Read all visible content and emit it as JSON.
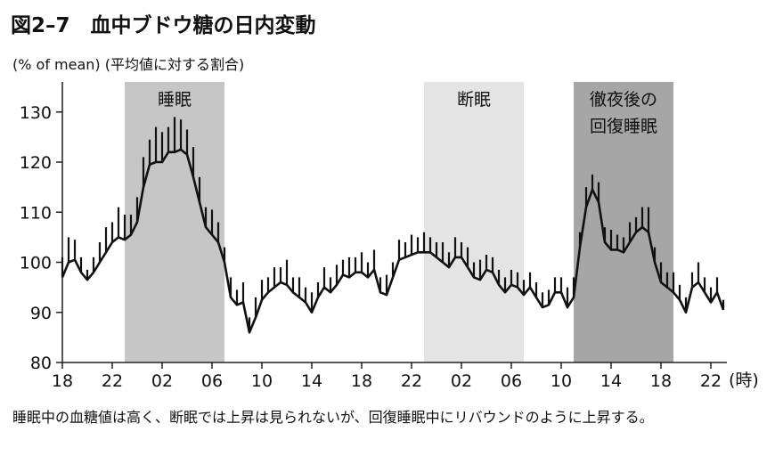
{
  "chart_data": {
    "type": "line",
    "title": "図2–7　血中ブドウ糖の日内変動",
    "y_label": "(% of mean) (平均値に対する割合)",
    "x_unit": "(時)",
    "caption": "睡眠中の血糖値は高く、断眠では上昇は見られないが、回復睡眠中にリバウンドのように上昇する。",
    "xlim": [
      0,
      53
    ],
    "ylim": [
      80,
      136
    ],
    "yticks": [
      80,
      90,
      100,
      110,
      120,
      130
    ],
    "xticks": [
      {
        "value": 0,
        "label": "18"
      },
      {
        "value": 4,
        "label": "22"
      },
      {
        "value": 8,
        "label": "02"
      },
      {
        "value": 12,
        "label": "06"
      },
      {
        "value": 16,
        "label": "10"
      },
      {
        "value": 20,
        "label": "14"
      },
      {
        "value": 24,
        "label": "18"
      },
      {
        "value": 28,
        "label": "22"
      },
      {
        "value": 32,
        "label": "02"
      },
      {
        "value": 36,
        "label": "06"
      },
      {
        "value": 40,
        "label": "10"
      },
      {
        "value": 44,
        "label": "14"
      },
      {
        "value": 48,
        "label": "18"
      },
      {
        "value": 52,
        "label": "22"
      }
    ],
    "regions": [
      {
        "label": [
          "睡眠"
        ],
        "start": 5,
        "end": 13,
        "color": "#c6c6c6"
      },
      {
        "label": [
          "断眠"
        ],
        "start": 29,
        "end": 37,
        "color": "#e4e4e4"
      },
      {
        "label": [
          "徹夜後の",
          "回復睡眠"
        ],
        "start": 41,
        "end": 49,
        "color": "#a6a6a6"
      }
    ],
    "x": [
      0,
      0.5,
      1,
      1.5,
      2,
      2.5,
      3,
      3.5,
      4,
      4.5,
      5,
      5.5,
      6,
      6.5,
      7,
      7.5,
      8,
      8.5,
      9,
      9.5,
      10,
      10.5,
      11,
      11.5,
      12,
      12.5,
      13,
      13.5,
      14,
      14.5,
      15,
      15.5,
      16,
      16.5,
      17,
      17.5,
      18,
      18.5,
      19,
      19.5,
      20,
      20.5,
      21,
      21.5,
      22,
      22.5,
      23,
      23.5,
      24,
      24.5,
      25,
      25.5,
      26,
      26.5,
      27,
      27.5,
      28,
      28.5,
      29,
      29.5,
      30,
      30.5,
      31,
      31.5,
      32,
      32.5,
      33,
      33.5,
      34,
      34.5,
      35,
      35.5,
      36,
      36.5,
      37,
      37.5,
      38,
      38.5,
      39,
      39.5,
      40,
      40.5,
      41,
      41.5,
      42,
      42.5,
      43,
      43.5,
      44,
      44.5,
      45,
      45.5,
      46,
      46.5,
      47,
      47.5,
      48,
      48.5,
      49,
      49.5,
      50,
      50.5,
      51,
      51.5,
      52,
      52.5,
      53
    ],
    "series": [
      {
        "color": "#111111",
        "values": [
          97,
          100,
          100.5,
          98,
          96.5,
          98,
          100,
          102,
          104,
          105,
          104.5,
          105.5,
          108,
          115,
          119.5,
          120,
          120,
          122,
          122,
          122.5,
          121.5,
          117,
          112,
          107,
          105.5,
          104,
          100,
          93,
          91.5,
          92,
          86,
          89,
          92.5,
          94,
          95,
          96,
          95.5,
          94,
          93,
          92,
          90,
          93,
          95,
          94,
          95.5,
          97.5,
          97,
          98,
          98,
          97,
          98.5,
          94,
          93.5,
          97,
          100.5,
          101,
          101.5,
          102,
          102,
          102,
          101,
          100,
          99,
          101,
          101,
          99,
          97,
          96.5,
          98.5,
          98,
          95.5,
          94,
          95.5,
          95,
          93.5,
          95,
          93,
          91,
          91.5,
          94,
          94,
          91,
          93,
          103,
          111,
          114.5,
          112,
          104,
          102.5,
          102.5,
          102,
          104,
          106,
          107,
          106,
          100,
          96,
          95,
          94,
          92.5,
          90,
          95,
          96,
          94,
          92,
          94,
          90.5
        ],
        "errors": [
          4,
          5,
          4,
          3,
          2,
          3,
          4,
          5,
          4,
          6,
          5,
          4,
          5,
          6,
          5,
          7,
          6,
          5,
          7,
          6,
          5,
          6,
          5,
          4,
          5,
          4,
          3,
          4,
          3,
          4,
          3,
          4,
          4,
          3,
          4,
          3,
          5,
          3,
          4,
          3,
          4,
          3,
          4,
          3,
          4,
          3,
          4,
          3,
          4,
          3,
          4,
          3,
          4,
          3,
          4,
          3,
          4,
          3,
          4,
          3,
          3,
          4,
          3,
          4,
          3,
          4,
          3,
          4,
          3,
          3,
          3,
          3,
          3,
          3,
          3,
          3,
          3,
          3,
          3,
          3,
          3,
          4,
          4,
          3,
          4,
          3,
          4,
          3,
          4,
          3,
          3,
          4,
          3,
          4,
          5,
          3,
          4,
          3,
          4,
          3,
          3,
          3,
          4,
          3,
          3,
          3,
          2
        ]
      }
    ]
  }
}
